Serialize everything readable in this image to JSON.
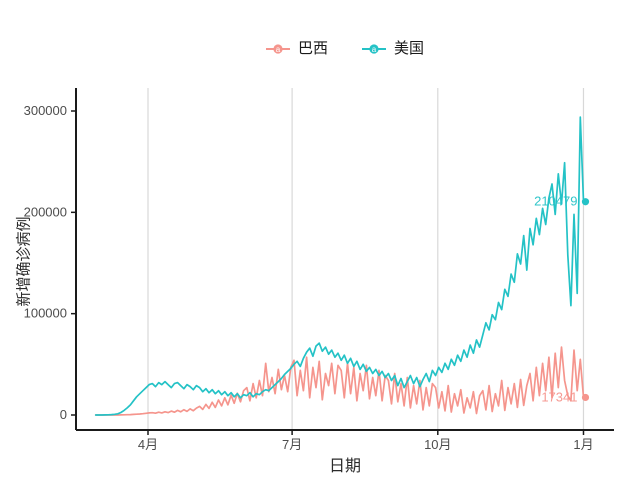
{
  "axes": {
    "x_title": "日期",
    "y_title": "新增确诊病例"
  },
  "legend": {
    "position": "top",
    "key_glyph": "point-on-line-with-a"
  },
  "colors": {
    "background": "#FFFFFF",
    "grid": "#D8D8D8",
    "axis": "#1A1A1A",
    "tick_text": "#4D4D4D",
    "brazil": "#F5958D",
    "usa": "#24C2C6"
  },
  "chart_data": {
    "type": "line",
    "title": "",
    "xlabel": "日期",
    "ylabel": "新增确诊病例",
    "ylim": [
      0,
      300000
    ],
    "grid": "vertical-only",
    "legend_position": "top",
    "x_unit": "days relative to Apr 1 2020",
    "x_domain_days": [
      -33,
      275
    ],
    "x_ticks": [
      {
        "label": "4月",
        "day": 0
      },
      {
        "label": "7月",
        "day": 91
      },
      {
        "label": "10月",
        "day": 183
      },
      {
        "label": "1月",
        "day": 275
      }
    ],
    "y_ticks": [
      {
        "label": "0",
        "value": 0
      },
      {
        "label": "100000",
        "value": 100000
      },
      {
        "label": "200000",
        "value": 200000
      },
      {
        "label": "300000",
        "value": 300000
      }
    ],
    "series": [
      {
        "name": "巴西",
        "color": "#F5958D",
        "end_label": "17341",
        "end_value": 17341,
        "values": [
          0,
          0,
          0,
          0,
          0,
          0,
          0,
          0,
          100,
          200,
          300,
          400,
          600,
          800,
          1000,
          1300,
          1700,
          2100,
          2300,
          1800,
          2800,
          2100,
          3200,
          2400,
          3800,
          2800,
          4500,
          3200,
          5200,
          3600,
          6000,
          4200,
          6800,
          8500,
          5500,
          10500,
          6500,
          12500,
          7500,
          14800,
          9000,
          17000,
          10000,
          19500,
          11500,
          21500,
          13000,
          24000,
          27000,
          14000,
          31000,
          17000,
          34000,
          19000,
          51000,
          23000,
          37000,
          21000,
          45000,
          25000,
          39000,
          23000,
          47000,
          54000,
          19000,
          44000,
          24000,
          57000,
          17000,
          47000,
          27000,
          53000,
          15000,
          41000,
          29000,
          51000,
          21000,
          49000,
          44000,
          17000,
          51000,
          21000,
          47000,
          14000,
          41000,
          24000,
          49000,
          16000,
          37000,
          19000,
          44000,
          14000,
          39000,
          34000,
          11000,
          41000,
          13000,
          31000,
          9000,
          37000,
          7000,
          29000,
          11000,
          34000,
          5000,
          27000,
          9000,
          31000,
          27000,
          7000,
          23000,
          4000,
          29000,
          3000,
          21000,
          9000,
          25000,
          2000,
          17000,
          7000,
          23000,
          1500,
          19000,
          24000,
          5000,
          29000,
          3500,
          21000,
          9000,
          34000,
          4500,
          27000,
          11000,
          31000,
          7500,
          35000,
          9500,
          29000,
          41000,
          14000,
          47000,
          19000,
          51000,
          24000,
          57000,
          17000,
          61000,
          27000,
          67000,
          34000,
          19000,
          14000,
          64000,
          24000,
          55000,
          17341
        ]
      },
      {
        "name": "美国",
        "color": "#24C2C6",
        "end_label": "210479",
        "end_value": 210479,
        "values": [
          0,
          0,
          0,
          100,
          200,
          400,
          700,
          1200,
          2500,
          4500,
          7000,
          10000,
          14000,
          18000,
          21000,
          24000,
          27000,
          30000,
          31000,
          28000,
          32000,
          30000,
          33000,
          30000,
          27000,
          31000,
          32000,
          29000,
          26000,
          30000,
          28000,
          25000,
          29000,
          27000,
          23000,
          26000,
          22000,
          25000,
          21000,
          24000,
          20000,
          23000,
          19000,
          22000,
          18000,
          21000,
          17000,
          20000,
          19000,
          22000,
          18000,
          21000,
          20000,
          23000,
          25000,
          24000,
          27000,
          30000,
          33000,
          36000,
          40000,
          43000,
          46000,
          50000,
          53000,
          48000,
          56000,
          62000,
          66000,
          58000,
          68000,
          71000,
          63000,
          67000,
          60000,
          64000,
          57000,
          61000,
          54000,
          59000,
          51000,
          56000,
          48000,
          53000,
          45000,
          50000,
          43000,
          47000,
          41000,
          45000,
          39000,
          43000,
          37000,
          41000,
          34000,
          39000,
          29000,
          36000,
          27000,
          33000,
          39000,
          31000,
          37000,
          28000,
          35000,
          41000,
          33000,
          44000,
          39000,
          47000,
          42000,
          51000,
          45000,
          55000,
          49000,
          59000,
          53000,
          64000,
          57000,
          69000,
          61000,
          74000,
          67000,
          79000,
          91000,
          84000,
          99000,
          94000,
          111000,
          104000,
          124000,
          117000,
          139000,
          131000,
          159000,
          149000,
          177000,
          143000,
          184000,
          168000,
          194000,
          178000,
          204000,
          188000,
          214000,
          228000,
          198000,
          238000,
          208000,
          249000,
          158000,
          108000,
          198000,
          120000,
          294000,
          210479
        ]
      }
    ]
  }
}
